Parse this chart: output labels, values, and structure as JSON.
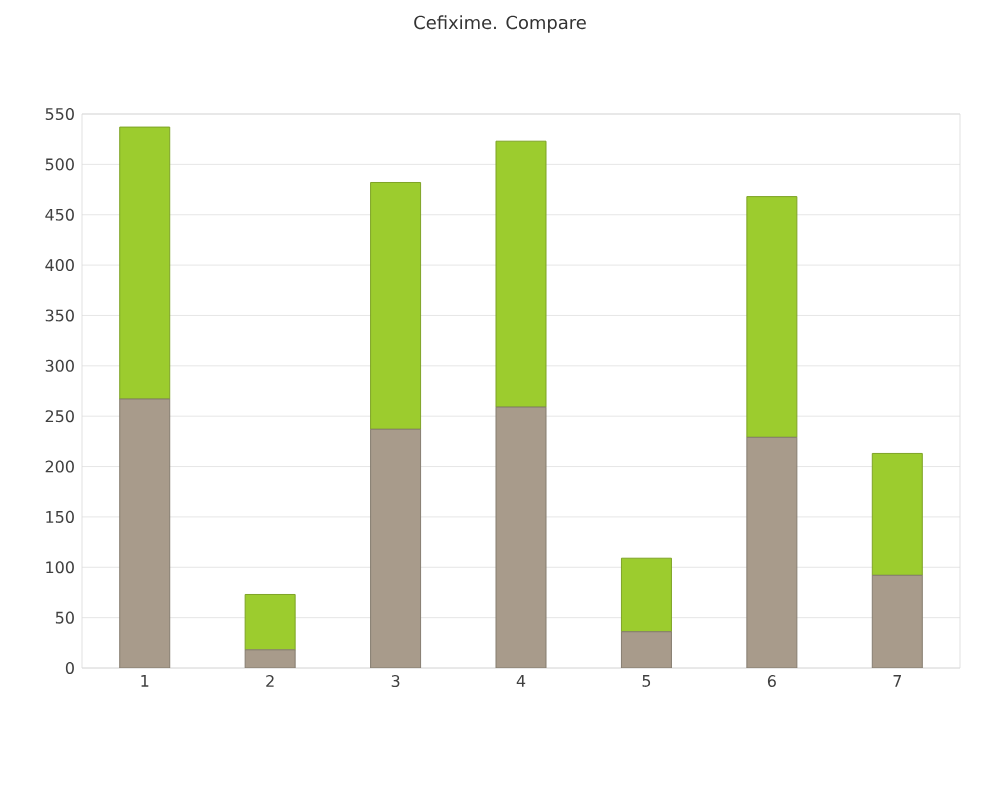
{
  "chart_data": {
    "type": "bar",
    "title": "Cefixime. Compare",
    "stacked": true,
    "categories": [
      "1",
      "2",
      "3",
      "4",
      "5",
      "6",
      "7"
    ],
    "series": [
      {
        "color": "#a89b8b",
        "values": [
          267,
          18,
          237,
          259,
          36,
          229,
          92
        ]
      },
      {
        "color": "#9ccc2e",
        "values": [
          270,
          55,
          245,
          264,
          73,
          239,
          121
        ]
      }
    ],
    "ylim": [
      0,
      550
    ],
    "yticks": [
      0,
      50,
      100,
      150,
      200,
      250,
      300,
      350,
      400,
      450,
      500,
      550
    ],
    "grid": "y",
    "legend": false
  }
}
